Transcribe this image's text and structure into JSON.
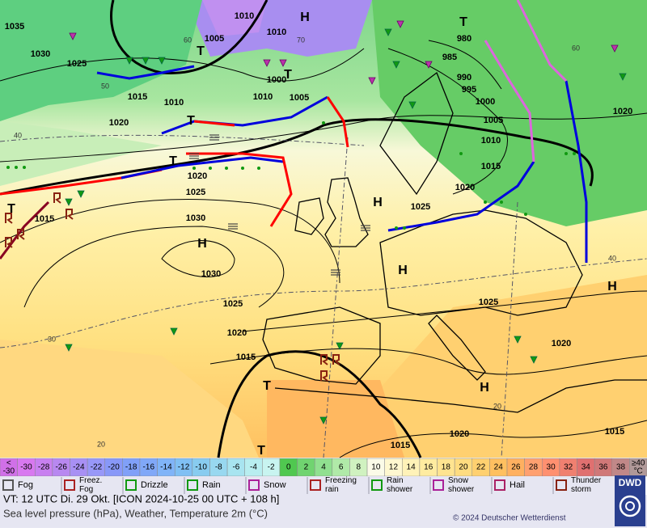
{
  "map": {
    "pressure_labels": [
      "1035",
      "1030",
      "1025",
      "1015",
      "1010",
      "1005",
      "1010",
      "1010",
      "1020",
      "1000",
      "1010",
      "1005",
      "980",
      "985",
      "990",
      "995",
      "1000",
      "1005",
      "1010",
      "1015",
      "1020",
      "1025",
      "1020",
      "1025",
      "1030",
      "1015",
      "1030",
      "1025",
      "1020",
      "1015",
      "1025",
      "1020",
      "1015",
      "1020",
      "1015",
      "1020"
    ],
    "system_labels": [
      "H",
      "H",
      "H",
      "H",
      "H",
      "H",
      "T",
      "T",
      "T",
      "T",
      "T",
      "T",
      "T",
      "T"
    ],
    "isotherm_labels": [
      "40",
      "50",
      "60",
      "70",
      "60",
      "40",
      "30",
      "20",
      "20"
    ]
  },
  "scale": {
    "cells": [
      {
        "top": "<",
        "bottom": "-30",
        "color": "#d070e8"
      },
      {
        "label": "-30",
        "color": "#d878f0"
      },
      {
        "label": "-28",
        "color": "#c880f0"
      },
      {
        "label": "-26",
        "color": "#b888f0"
      },
      {
        "label": "-24",
        "color": "#a890f4"
      },
      {
        "label": "-22",
        "color": "#9898f8"
      },
      {
        "label": "-20",
        "color": "#8898f8"
      },
      {
        "label": "-18",
        "color": "#80a0f8"
      },
      {
        "label": "-16",
        "color": "#80a8f8"
      },
      {
        "label": "-14",
        "color": "#80b4f8"
      },
      {
        "label": "-12",
        "color": "#80c0f4"
      },
      {
        "label": "-10",
        "color": "#88ccf0"
      },
      {
        "label": "-8",
        "color": "#98d8f0"
      },
      {
        "label": "-6",
        "color": "#a8e4f0"
      },
      {
        "label": "-4",
        "color": "#b8eef0"
      },
      {
        "label": "-2",
        "color": "#c8f4f0"
      },
      {
        "label": "0",
        "color": "#50c850"
      },
      {
        "label": "2",
        "color": "#70d470"
      },
      {
        "label": "4",
        "color": "#90e090"
      },
      {
        "label": "6",
        "color": "#b0eaa8"
      },
      {
        "label": "8",
        "color": "#d0f2c0"
      },
      {
        "label": "10",
        "color": "#fbfbe8"
      },
      {
        "label": "12",
        "color": "#fff8d0"
      },
      {
        "label": "14",
        "color": "#fff2b8"
      },
      {
        "label": "16",
        "color": "#ffeca0"
      },
      {
        "label": "18",
        "color": "#ffe490"
      },
      {
        "label": "20",
        "color": "#ffdc80"
      },
      {
        "label": "22",
        "color": "#ffd070"
      },
      {
        "label": "24",
        "color": "#ffc060"
      },
      {
        "label": "26",
        "color": "#ffb060"
      },
      {
        "label": "28",
        "color": "#ffa070"
      },
      {
        "label": "30",
        "color": "#ff9070"
      },
      {
        "label": "32",
        "color": "#f08070"
      },
      {
        "label": "34",
        "color": "#e07070"
      },
      {
        "label": "36",
        "color": "#d07878"
      },
      {
        "label": "38",
        "color": "#c08888"
      },
      {
        "top": "≥40",
        "bottom": "°C",
        "color": "#b09898"
      }
    ]
  },
  "legend": [
    {
      "label": "Fog",
      "color": "#555555"
    },
    {
      "label": "Freez.\nFog",
      "color": "#aa2222"
    },
    {
      "label": "Drizzle",
      "color": "#119911"
    },
    {
      "label": "Rain",
      "color": "#119911"
    },
    {
      "label": "Snow",
      "color": "#aa2299"
    },
    {
      "label": "Freezing\nrain",
      "color": "#aa2222"
    },
    {
      "label": "Rain\nshower",
      "color": "#119911"
    },
    {
      "label": "Snow\nshower",
      "color": "#aa2299"
    },
    {
      "label": "Hail",
      "color": "#aa2266"
    },
    {
      "label": "Thunder\nstorm",
      "color": "#882211"
    }
  ],
  "footer": {
    "valid_time": "VT: 12 UTC Di.  29 Okt. [ICON 2024-10-25  00 UTC + 108 h]",
    "description": "Sea level pressure (hPa), Weather, Temperature 2m (°C)",
    "copyright": "© 2024 Deutscher Wetterdienst",
    "logo": "DWD"
  }
}
